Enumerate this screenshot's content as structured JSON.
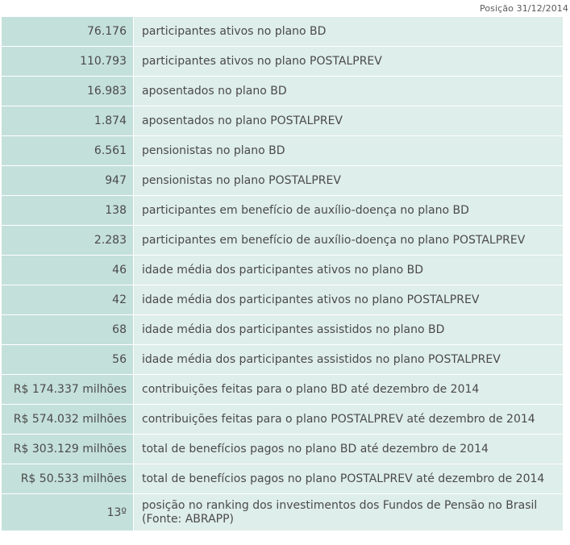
{
  "caption": "Posição 31/12/2014",
  "rows": [
    {
      "value": "76.176",
      "description": "participantes ativos no plano BD"
    },
    {
      "value": "110.793",
      "description": "participantes ativos no plano POSTALPREV"
    },
    {
      "value": "16.983",
      "description": "aposentados no plano BD"
    },
    {
      "value": "1.874",
      "description": "aposentados no plano POSTALPREV"
    },
    {
      "value": "6.561",
      "description": "pensionistas no plano BD"
    },
    {
      "value": "947",
      "description": "pensionistas no plano POSTALPREV"
    },
    {
      "value": "138",
      "description": "participantes em benefício de auxílio-doença no plano BD"
    },
    {
      "value": "2.283",
      "description": "participantes em benefício de auxílio-doença no plano POSTALPREV"
    },
    {
      "value": "46",
      "description": "idade média dos participantes ativos no plano BD"
    },
    {
      "value": "42",
      "description": "idade média dos participantes ativos no plano POSTALPREV"
    },
    {
      "value": "68",
      "description": "idade média dos participantes assistidos no plano BD"
    },
    {
      "value": "56",
      "description": "idade média dos participantes assistidos no plano POSTALPREV"
    },
    {
      "value": "R$ 174.337 milhões",
      "description": "contribuições feitas para o plano BD até dezembro de 2014"
    },
    {
      "value": "R$ 574.032 milhões",
      "description": "contribuições feitas para o plano POSTALPREV até dezembro de 2014"
    },
    {
      "value": "R$ 303.129 milhões",
      "description": "total de benefícios pagos no plano BD até dezembro de 2014"
    },
    {
      "value": "R$ 50.533 milhões",
      "description": "total de benefícios pagos no plano POSTALPREV até dezembro de 2014"
    },
    {
      "value": "13º",
      "description": "posição no ranking dos investimentos dos Fundos de Pensão no Brasil (Fonte: ABRAPP)"
    }
  ]
}
